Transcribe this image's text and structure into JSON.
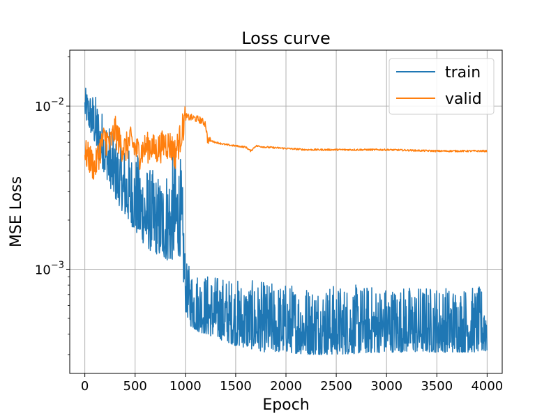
{
  "chart_data": {
    "type": "line",
    "title": "Loss curve",
    "xlabel": "Epoch",
    "ylabel": "MSE Loss",
    "xlim": [
      -150,
      4150
    ],
    "ylim": [
      0.00023,
      0.022
    ],
    "yscale": "log",
    "grid": true,
    "legend_position": "top-right",
    "xticks": [
      0,
      500,
      1000,
      1500,
      2000,
      2500,
      3000,
      3500,
      4000
    ],
    "yticks": [
      {
        "value": 0.01,
        "base": "10",
        "exp": "−2"
      },
      {
        "value": 0.001,
        "base": "10",
        "exp": "−3"
      }
    ],
    "series": [
      {
        "name": "train",
        "color": "#1f77b4",
        "noisy": true,
        "x": [
          0,
          50,
          100,
          150,
          200,
          250,
          300,
          350,
          400,
          450,
          500,
          550,
          600,
          650,
          700,
          750,
          800,
          850,
          900,
          950,
          1000,
          1050,
          1100,
          1200,
          1300,
          1400,
          1500,
          1600,
          1700,
          1800,
          2000,
          2200,
          2500,
          3000,
          3500,
          4000
        ],
        "low": [
          0.0085,
          0.007,
          0.0058,
          0.0045,
          0.0038,
          0.0032,
          0.0027,
          0.0024,
          0.0021,
          0.0019,
          0.0017,
          0.0015,
          0.0014,
          0.0013,
          0.00125,
          0.0012,
          0.00115,
          0.0011,
          0.0012,
          0.0012,
          0.00055,
          0.00045,
          0.00042,
          0.0004,
          0.00038,
          0.00036,
          0.00034,
          0.00033,
          0.00032,
          0.00031,
          0.00031,
          0.0003,
          0.0003,
          0.00031,
          0.00031,
          0.00031
        ],
        "high": [
          0.013,
          0.0125,
          0.012,
          0.01,
          0.009,
          0.0075,
          0.0065,
          0.006,
          0.0058,
          0.0055,
          0.0052,
          0.005,
          0.0045,
          0.0042,
          0.004,
          0.0038,
          0.0042,
          0.0048,
          0.0055,
          0.005,
          0.0011,
          0.00105,
          0.001,
          0.00095,
          0.00093,
          0.0009,
          0.00088,
          0.00086,
          0.00085,
          0.00084,
          0.00083,
          0.00082,
          0.00081,
          0.0008,
          0.0008,
          0.00078
        ]
      },
      {
        "name": "valid",
        "color": "#ff7f0e",
        "noisy": false,
        "x": [
          0,
          50,
          100,
          150,
          200,
          250,
          300,
          350,
          400,
          450,
          500,
          550,
          600,
          650,
          700,
          750,
          800,
          850,
          900,
          950,
          1000,
          1050,
          1100,
          1150,
          1200,
          1220,
          1300,
          1400,
          1500,
          1600,
          1650,
          1700,
          1800,
          2000,
          2200,
          2500,
          3000,
          3500,
          4000
        ],
        "values": [
          0.0052,
          0.0048,
          0.0042,
          0.0055,
          0.0065,
          0.0058,
          0.0072,
          0.006,
          0.0055,
          0.0062,
          0.0055,
          0.0052,
          0.0056,
          0.0058,
          0.0054,
          0.0057,
          0.006,
          0.0058,
          0.0052,
          0.0065,
          0.0086,
          0.0085,
          0.0084,
          0.0082,
          0.0078,
          0.0062,
          0.006,
          0.0058,
          0.0057,
          0.0056,
          0.0053,
          0.0057,
          0.0056,
          0.0055,
          0.0054,
          0.0054,
          0.0054,
          0.0053,
          0.0053
        ]
      }
    ]
  }
}
